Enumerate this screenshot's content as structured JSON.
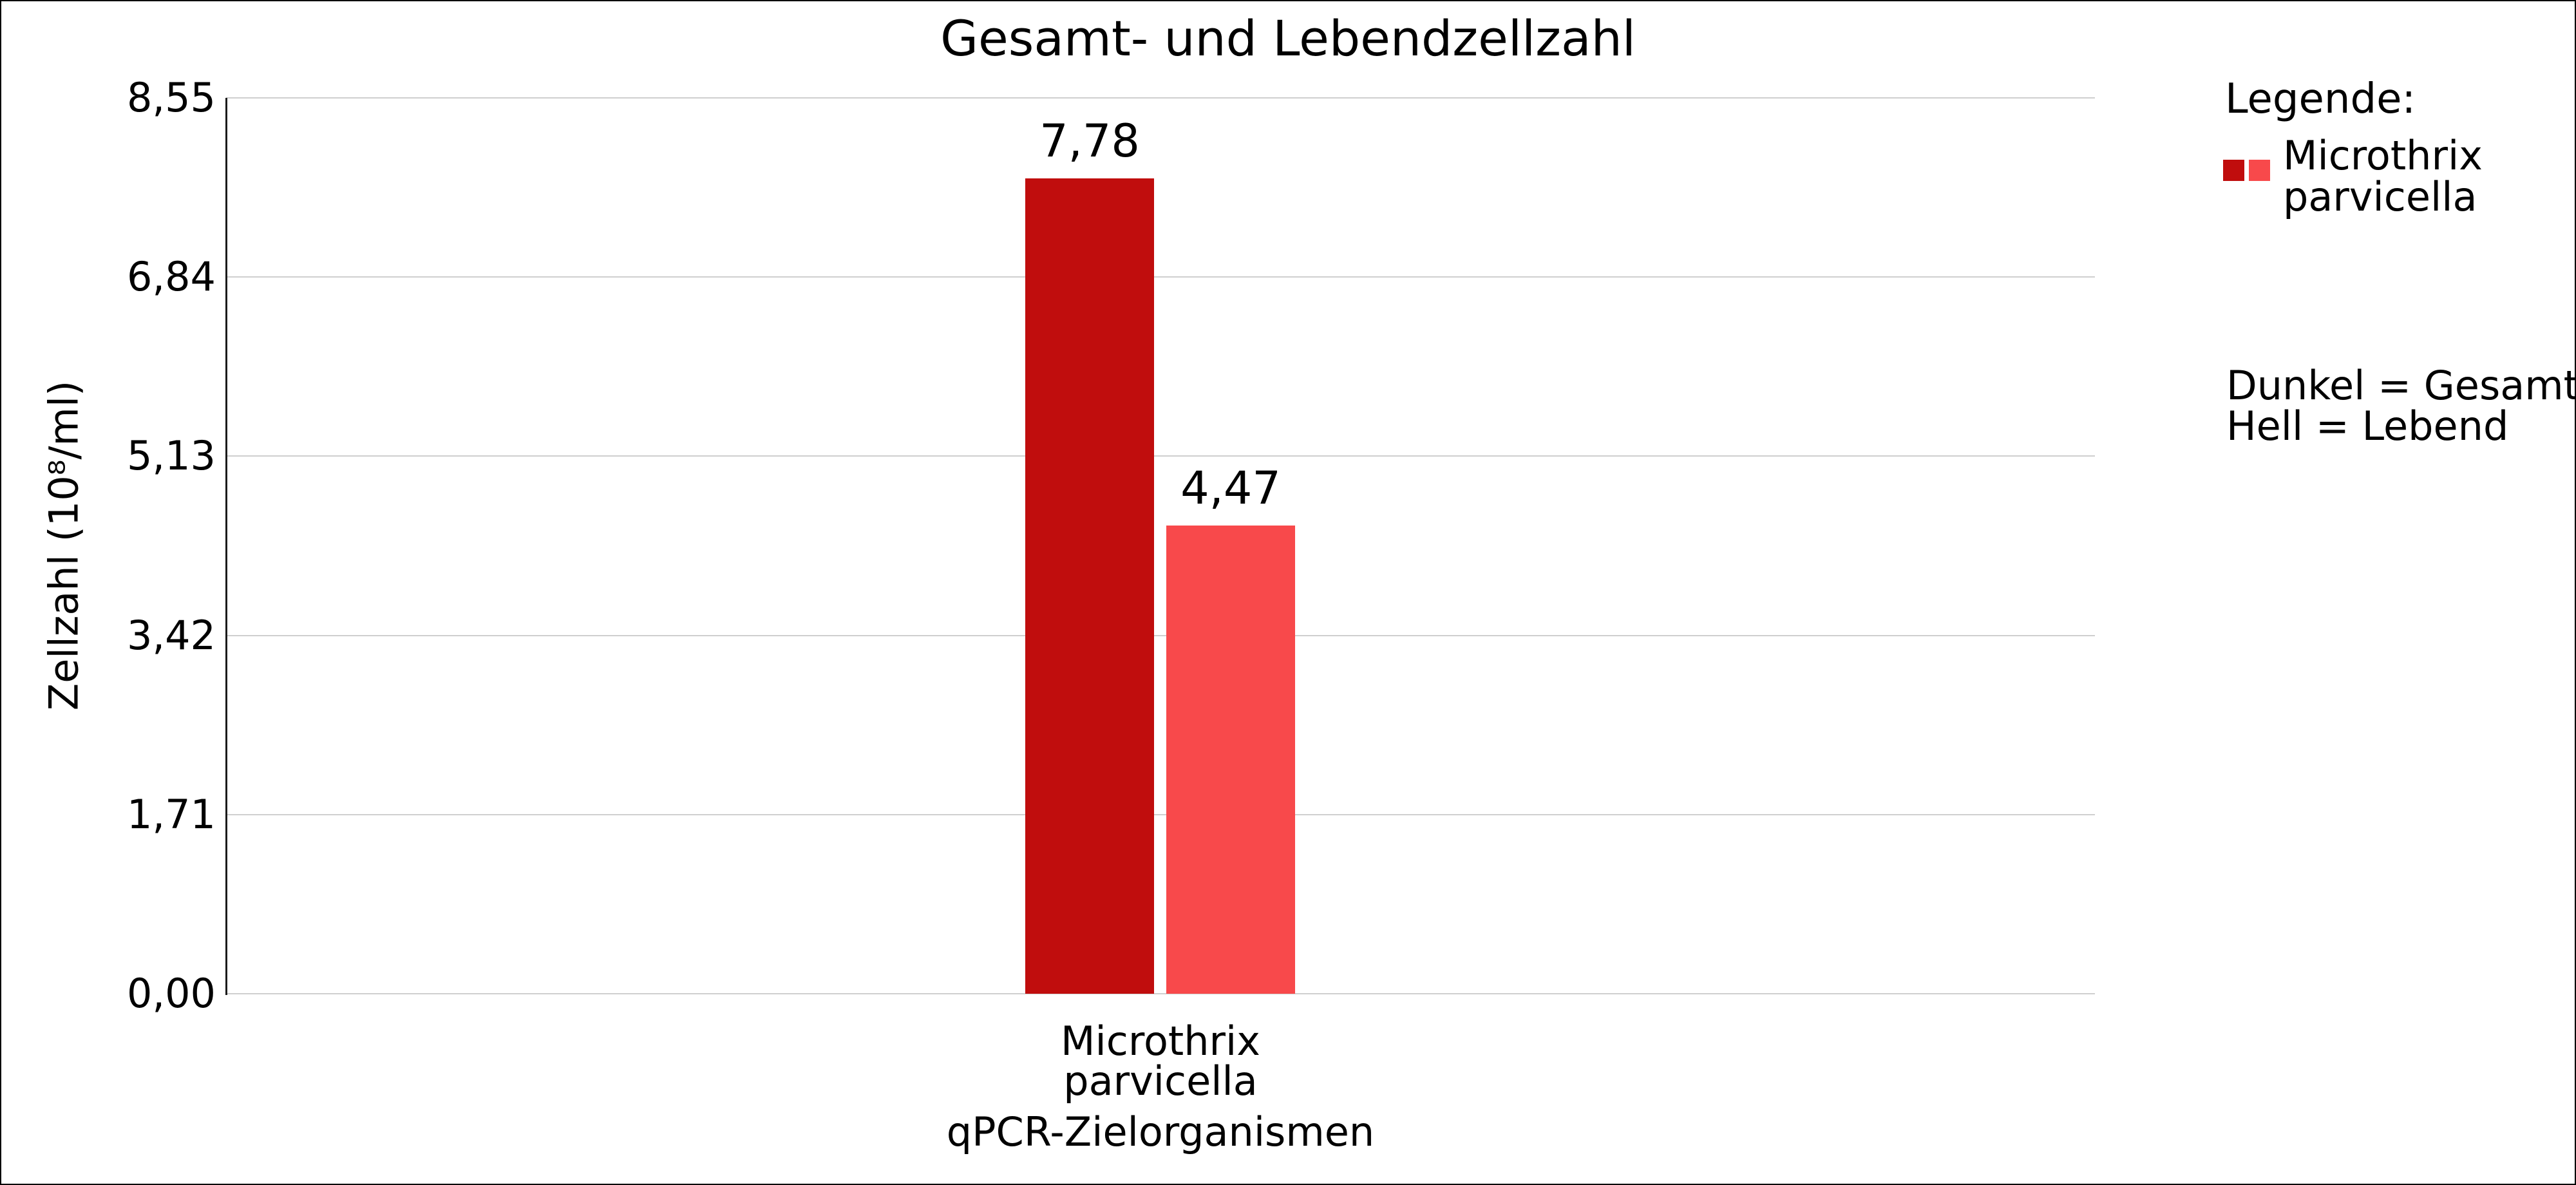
{
  "figure": {
    "background": "#ffffff",
    "border_color": "#000000"
  },
  "chart_data": {
    "type": "bar",
    "title": "Gesamt- und Lebendzellzahl",
    "xlabel": "qPCR-Zielorganismen",
    "ylabel": "Zellzahl (10⁸/ml)",
    "ylim": [
      0,
      8.55
    ],
    "ytick_step": 1.71,
    "grid": "horizontal",
    "legend_position": "right",
    "yticks": [
      {
        "value": 0,
        "label": "0,00"
      },
      {
        "value": 1.71,
        "label": "1,71"
      },
      {
        "value": 3.42,
        "label": "3,42"
      },
      {
        "value": 5.13,
        "label": "5,13"
      },
      {
        "value": 6.84,
        "label": "6,84"
      },
      {
        "value": 8.55,
        "label": "8,55"
      }
    ],
    "categories": [
      "Microthrix parvicella"
    ],
    "category_tick_lines": [
      "Microthrix",
      "parvicella"
    ],
    "series": [
      {
        "name": "Gesamt (dunkel)",
        "value": 7.78,
        "label": "7,78",
        "color": "#c00d0d"
      },
      {
        "name": "Lebend (hell)",
        "value": 4.47,
        "label": "4,47",
        "color": "#f8494b"
      }
    ]
  },
  "legend": {
    "title": "Legende:",
    "item": {
      "label_lines": [
        "Microthrix",
        "parvicella"
      ],
      "swatch_colors": [
        "#c00d0d",
        "#f8494b"
      ]
    },
    "notes": [
      "Dunkel = Gesamt",
      "Hell = Lebend"
    ]
  },
  "colors": {
    "gridline": "#cfcfcf",
    "axis_spine": "#1c1c1c",
    "text": "#000000"
  }
}
